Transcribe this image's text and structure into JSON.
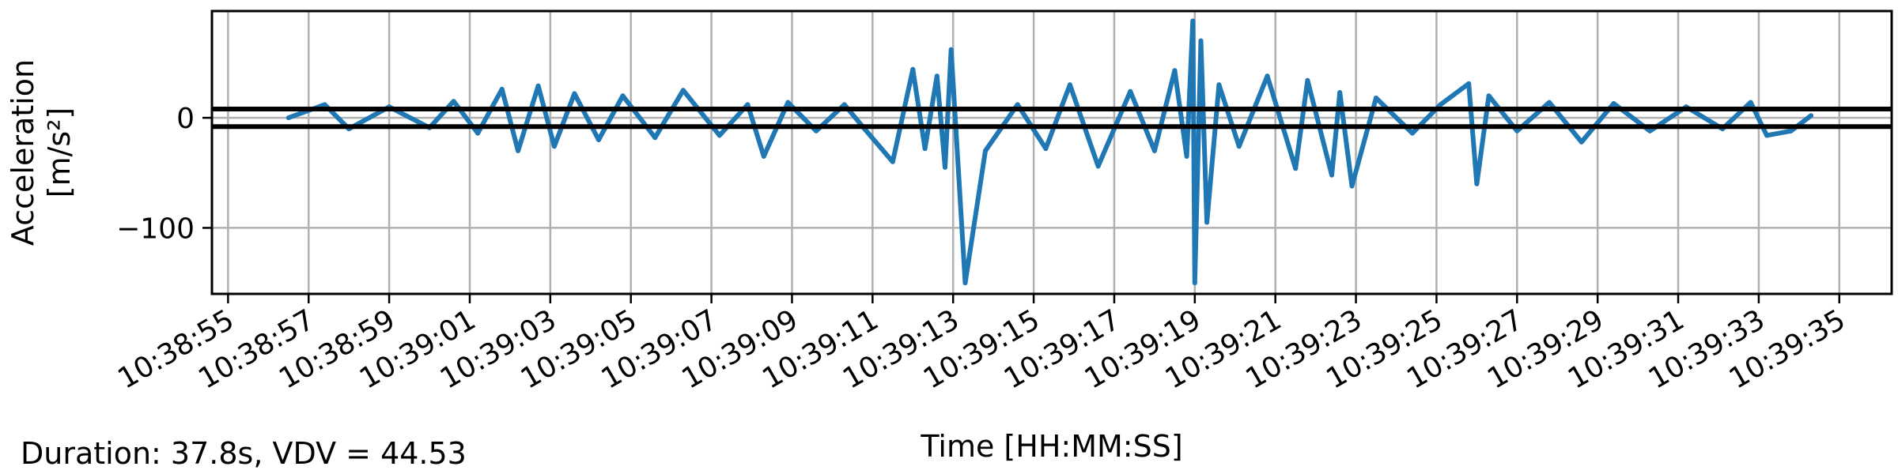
{
  "footnote": "Duration: 37.8s, VDV = 44.53",
  "chart_data": {
    "type": "line",
    "title": "",
    "xlabel": "Time [HH:MM:SS]",
    "ylabel": "Acceleration",
    "ylabel_unit": "[m/s²]",
    "x_ticks": [
      "10:38:55",
      "10:38:57",
      "10:38:59",
      "10:39:01",
      "10:39:03",
      "10:39:05",
      "10:39:07",
      "10:39:09",
      "10:39:11",
      "10:39:13",
      "10:39:15",
      "10:39:17",
      "10:39:19",
      "10:39:21",
      "10:39:23",
      "10:39:25",
      "10:39:27",
      "10:39:29",
      "10:39:31",
      "10:39:33",
      "10:39:35"
    ],
    "xlim": [
      "10:38:54.6",
      "10:39:36.3"
    ],
    "y_ticks": [
      -100,
      0
    ],
    "ylim": [
      -160,
      97
    ],
    "grid": true,
    "series_color": "#1f77b4",
    "threshold_color": "#000000",
    "thresholds": [
      8,
      -8
    ],
    "series": [
      {
        "x": [
          "10:38:56.5",
          "10:38:57.4",
          "10:38:58.0",
          "10:38:59.0",
          "10:39:00.0",
          "10:39:00.6",
          "10:39:01.2",
          "10:39:01.8",
          "10:39:02.2",
          "10:39:02.7",
          "10:39:03.1",
          "10:39:03.6",
          "10:39:04.2",
          "10:39:04.8",
          "10:39:05.6",
          "10:39:06.3",
          "10:39:07.2",
          "10:39:07.9",
          "10:39:08.3",
          "10:39:08.9",
          "10:39:09.6",
          "10:39:10.3",
          "10:39:10.8",
          "10:39:11.5",
          "10:39:12.0",
          "10:39:12.3",
          "10:39:12.6",
          "10:39:12.8",
          "10:39:12.95",
          "10:39:13.3",
          "10:39:13.8",
          "10:39:14.6",
          "10:39:15.3",
          "10:39:15.9",
          "10:39:16.6",
          "10:39:17.4",
          "10:39:18.0",
          "10:39:18.5",
          "10:39:18.8",
          "10:39:18.95",
          "10:39:19.0",
          "10:39:19.15",
          "10:39:19.3",
          "10:39:19.6",
          "10:39:20.1",
          "10:39:20.8",
          "10:39:21.5",
          "10:39:21.8",
          "10:39:22.4",
          "10:39:22.6",
          "10:39:22.9",
          "10:39:23.5",
          "10:39:24.4",
          "10:39:25.1",
          "10:39:25.8",
          "10:39:26.0",
          "10:39:26.3",
          "10:39:27.0",
          "10:39:27.8",
          "10:39:28.6",
          "10:39:29.4",
          "10:39:30.3",
          "10:39:31.2",
          "10:39:32.1",
          "10:39:32.8",
          "10:39:33.2",
          "10:39:33.8",
          "10:39:34.3"
        ],
        "y": [
          0,
          12,
          -10,
          10,
          -9,
          15,
          -14,
          26,
          -30,
          29,
          -26,
          22,
          -20,
          20,
          -18,
          25,
          -16,
          12,
          -35,
          14,
          -12,
          12,
          -10,
          -40,
          44,
          -28,
          38,
          -45,
          62,
          -150,
          -30,
          12,
          -28,
          30,
          -44,
          24,
          -30,
          43,
          -35,
          88,
          -150,
          70,
          -95,
          30,
          -26,
          38,
          -46,
          34,
          -52,
          23,
          -62,
          18,
          -14,
          12,
          31,
          -60,
          20,
          -12,
          14,
          -22,
          13,
          -12,
          10,
          -10,
          14,
          -16,
          -12,
          2
        ]
      }
    ]
  }
}
